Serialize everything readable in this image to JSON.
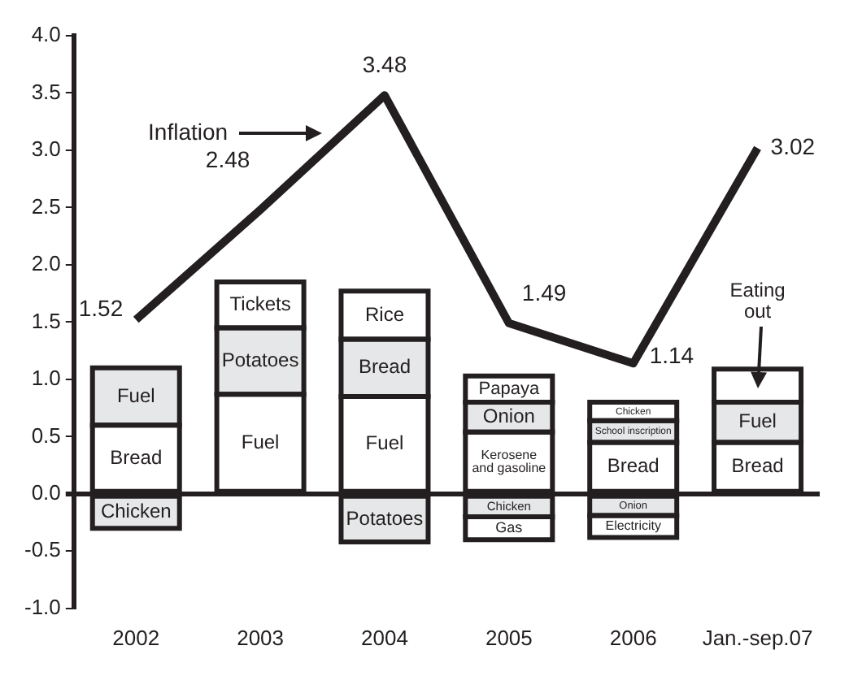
{
  "chart_data": {
    "type": "bar",
    "stacked": true,
    "categories": [
      "2002",
      "2003",
      "2004",
      "2005",
      "2006",
      "Jan.-sep.07"
    ],
    "ylim": [
      -1,
      4
    ],
    "yticks": [
      {
        "value": -1,
        "label": "-1.0"
      },
      {
        "value": -0.5,
        "label": "-0.5"
      },
      {
        "value": 0,
        "label": "0.0"
      },
      {
        "value": 0.5,
        "label": "0.5"
      },
      {
        "value": 1,
        "label": "1.0"
      },
      {
        "value": 1.5,
        "label": "1.5"
      },
      {
        "value": 2,
        "label": "2.0"
      },
      {
        "value": 2.5,
        "label": "2.5"
      },
      {
        "value": 3,
        "label": "3.0"
      },
      {
        "value": 3.5,
        "label": "3.5"
      },
      {
        "value": 4,
        "label": "4.0"
      }
    ],
    "marker": "none",
    "series": [
      {
        "colors": [
          "#ffffff",
          "#ffffff",
          "#ffffff",
          "#ffffff",
          "#ffffff",
          "#ffffff"
        ],
        "values": [
          0.6,
          0.87,
          0.85,
          0.54,
          0.45,
          0.45
        ],
        "value_labels": [
          "Bread",
          "Fuel",
          "Fuel",
          "Kerosene and gasoline",
          "Bread",
          "Bread"
        ]
      },
      {
        "colors": [
          "#e6e7e8",
          "#e6e7e8",
          "#e6e7e8",
          "#e6e7e8",
          "#e6e7e8",
          "#e6e7e8"
        ],
        "values": [
          0.5,
          0.58,
          0.5,
          0.26,
          0.19,
          0.35
        ],
        "value_labels": [
          "Fuel",
          "Potatoes",
          "Bread",
          "Onion",
          "School inscription",
          "Fuel"
        ]
      },
      {
        "colors": [
          "#ffffff",
          "#ffffff",
          "#ffffff",
          "#ffffff",
          "#ffffff",
          "#ffffff"
        ],
        "values": [
          null,
          0.4,
          0.42,
          0.23,
          0.16,
          0.29
        ],
        "value_labels": [
          null,
          "Tickets",
          "Rice",
          "Papaya",
          "Chicken",
          null
        ]
      },
      {
        "colors": [
          "#e6e7e8",
          "#e6e7e8",
          "#e6e7e8",
          "#e6e7e8",
          "#e6e7e8",
          "#e6e7e8"
        ],
        "values": [
          -0.3,
          null,
          -0.42,
          -0.2,
          -0.19,
          null
        ],
        "value_labels": [
          "Chicken",
          null,
          "Potatoes",
          "Chicken",
          "Onion",
          null
        ]
      },
      {
        "colors": [
          "#ffffff",
          "#ffffff",
          "#ffffff",
          "#ffffff",
          "#ffffff",
          "#ffffff"
        ],
        "values": [
          null,
          null,
          null,
          -0.2,
          -0.19,
          null
        ],
        "value_labels": [
          null,
          null,
          null,
          "Gas",
          "Electricity",
          null
        ]
      },
      {
        "type": "line",
        "name": "Inflation",
        "color": "#231f20",
        "values": [
          1.52,
          2.48,
          3.48,
          1.49,
          1.14,
          3.02
        ],
        "value_labels": [
          "1.52",
          "2.48",
          "3.48",
          "1.49",
          "1.14",
          "3.02"
        ]
      }
    ],
    "annotations": [
      {
        "text": "Eating out",
        "x": "Jan.-sep.07",
        "y": 1.09
      }
    ]
  }
}
